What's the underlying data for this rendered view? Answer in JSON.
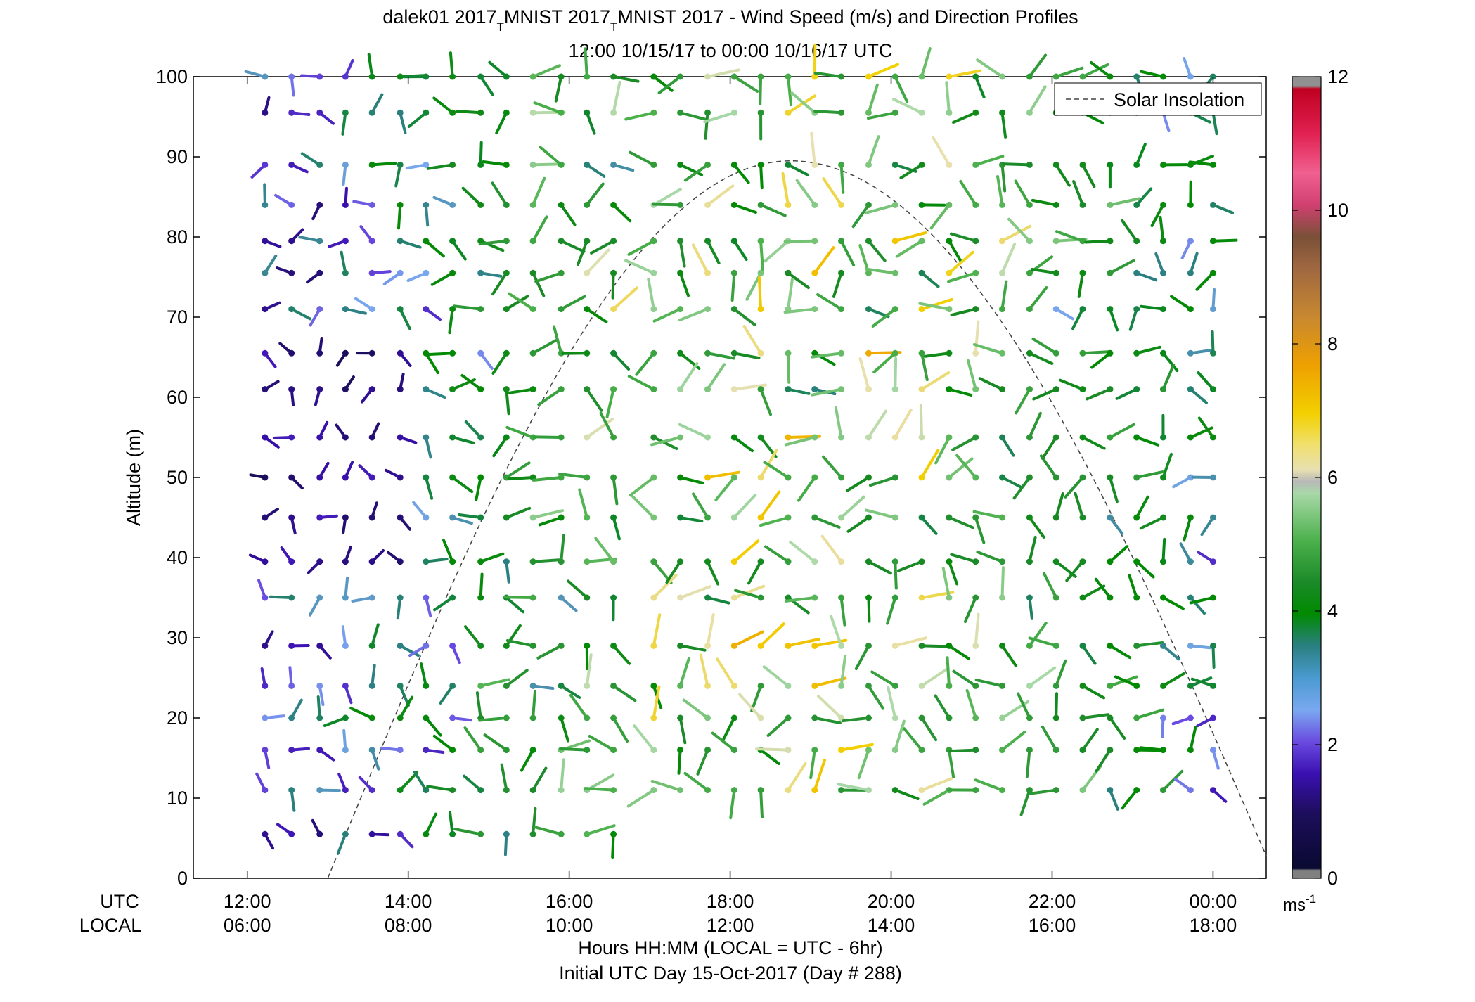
{
  "chart_data": {
    "type": "scatter",
    "title_line1": "dalek01 2017",
    "title_sub1": "T",
    "title_mid": "MNIST 2017",
    "title_sub2": "T",
    "title_rest": "MNIST 2017 - Wind Speed (m/s) and Direction Profiles",
    "subtitle": "12:00 10/15/17 to 00:00 10/16/17  UTC",
    "ylabel": "Altitude (m)",
    "xlabel_line1": "Hours HH:MM  (LOCAL = UTC - 6hr)",
    "xlabel_line2": "Initial UTC Day 15-Oct-2017 (Day # 288)",
    "x_row_label_utc": "UTC",
    "x_row_label_local": "LOCAL",
    "xlim_hours": [
      11.33,
      24.66
    ],
    "ylim": [
      0,
      100
    ],
    "x_ticks": [
      {
        "h": 12,
        "utc": "12:00",
        "local": "06:00"
      },
      {
        "h": 14,
        "utc": "14:00",
        "local": "08:00"
      },
      {
        "h": 16,
        "utc": "16:00",
        "local": "10:00"
      },
      {
        "h": 18,
        "utc": "18:00",
        "local": "12:00"
      },
      {
        "h": 20,
        "utc": "20:00",
        "local": "14:00"
      },
      {
        "h": 22,
        "utc": "22:00",
        "local": "16:00"
      },
      {
        "h": 24,
        "utc": "00:00",
        "local": "18:00"
      }
    ],
    "y_ticks": [
      0,
      10,
      20,
      30,
      40,
      50,
      60,
      70,
      80,
      90,
      100
    ],
    "y_tick_labels": [
      "0",
      "10",
      "20",
      "30",
      "40",
      "50",
      "60",
      "70",
      "80",
      "90",
      "100"
    ],
    "legend": {
      "label": "Solar Insolation",
      "position": "top-right"
    },
    "colorbar": {
      "min": 0,
      "max": 12,
      "ticks": [
        0,
        2,
        4,
        6,
        8,
        10,
        12
      ],
      "tick_labels": [
        "0",
        "2",
        "4",
        "6",
        "8",
        "10",
        "12"
      ],
      "unit_base": "ms",
      "unit_exp": "-1"
    },
    "solar_insolation": {
      "sunrise_h": 13.0,
      "sunset_h": 24.66,
      "peak_h": 18.75,
      "peak_altitude": 89.5
    },
    "series": [
      {
        "profile_utc_h": [
          12.22,
          12.55,
          12.9,
          13.22,
          13.55,
          13.9,
          14.22,
          14.55,
          14.9,
          15.22,
          15.55,
          15.9,
          16.22,
          16.55,
          17.05,
          17.38,
          17.72,
          18.05,
          18.38,
          18.72,
          19.05,
          19.38,
          19.72,
          20.05,
          20.38,
          20.72,
          21.05,
          21.38,
          21.72,
          22.05,
          22.38,
          22.72,
          23.05,
          23.38,
          23.72,
          24.0
        ],
        "altitudes_m": [
          100,
          95.5,
          89,
          84,
          79.5,
          75.5,
          71,
          65.5,
          61,
          55,
          50,
          45,
          39.5,
          35,
          29,
          24,
          20,
          16,
          11,
          5.5
        ],
        "speed_scale": "0-12 m/s (color)",
        "direction": "barb orientation"
      }
    ]
  }
}
